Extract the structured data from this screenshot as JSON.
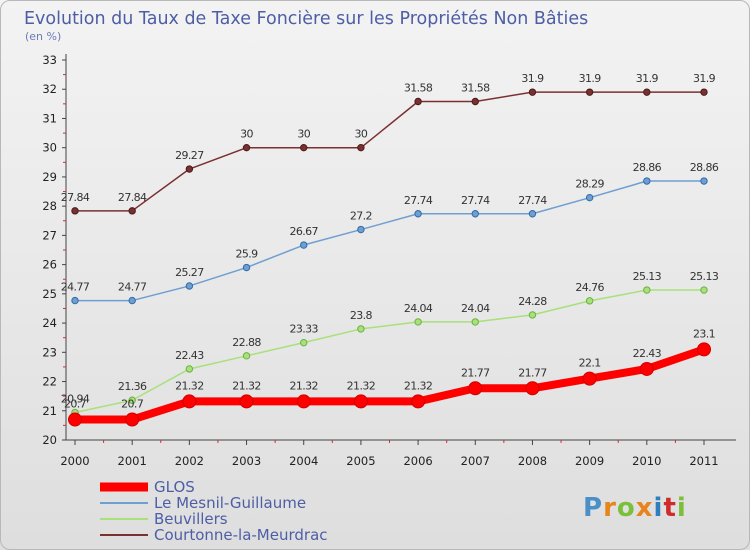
{
  "chart_data": {
    "type": "line",
    "title": "Evolution du Taux de Taxe Foncière sur les Propriétés Non Bâties",
    "subtitle": "(en %)",
    "x": [
      "2000",
      "2001",
      "2002",
      "2003",
      "2004",
      "2005",
      "2006",
      "2007",
      "2008",
      "2009",
      "2010",
      "2011"
    ],
    "ylim": [
      20,
      33
    ],
    "yticks": [
      "20",
      "21",
      "22",
      "23",
      "24",
      "25",
      "26",
      "27",
      "28",
      "29",
      "30",
      "31",
      "32",
      "33"
    ],
    "grid": false,
    "legend_position": "bottom-left",
    "series": [
      {
        "name": "GLOS",
        "color": "#ff0000",
        "values": [
          20.7,
          20.7,
          21.32,
          21.32,
          21.32,
          21.32,
          21.32,
          21.77,
          21.77,
          22.1,
          22.43,
          23.1
        ],
        "labels": [
          "20.7",
          "20.7",
          "21.32",
          "21.32",
          "21.32",
          "21.32",
          "21.32",
          "21.77",
          "21.77",
          "22.1",
          "22.43",
          "23.1"
        ]
      },
      {
        "name": "Le Mesnil-Guillaume",
        "color": "#6f9fd0",
        "values": [
          24.77,
          24.77,
          25.27,
          25.9,
          26.67,
          27.2,
          27.74,
          27.74,
          27.74,
          28.29,
          28.86,
          28.86
        ],
        "labels": [
          "24.77",
          "24.77",
          "25.27",
          "25.9",
          "26.67",
          "27.2",
          "27.74",
          "27.74",
          "27.74",
          "28.29",
          "28.86",
          "28.86"
        ]
      },
      {
        "name": "Beuvillers",
        "color": "#a8e07a",
        "values": [
          20.94,
          21.36,
          22.43,
          22.88,
          23.33,
          23.8,
          24.04,
          24.04,
          24.28,
          24.76,
          25.13,
          25.13
        ],
        "labels": [
          "20.94",
          "21.36",
          "22.43",
          "22.88",
          "23.33",
          "23.8",
          "24.04",
          "24.04",
          "24.28",
          "24.76",
          "25.13",
          "25.13"
        ]
      },
      {
        "name": "Courtonne-la-Meurdrac",
        "color": "#7a3030",
        "values": [
          27.84,
          27.84,
          29.27,
          30,
          30,
          30,
          31.58,
          31.58,
          31.9,
          31.9,
          31.9,
          31.9
        ],
        "labels": [
          "27.84",
          "27.84",
          "29.27",
          "30",
          "30",
          "30",
          "31.58",
          "31.58",
          "31.9",
          "31.9",
          "31.9",
          "31.9"
        ]
      }
    ]
  },
  "brand": {
    "letters": [
      "P",
      "r",
      "o",
      "x",
      "i",
      "t",
      "i"
    ],
    "colors": [
      "#4a90c8",
      "#e8841c",
      "#7cbf3a",
      "#e8841c",
      "#2f7fc0",
      "#d02b2b",
      "#7cbf3a"
    ]
  }
}
